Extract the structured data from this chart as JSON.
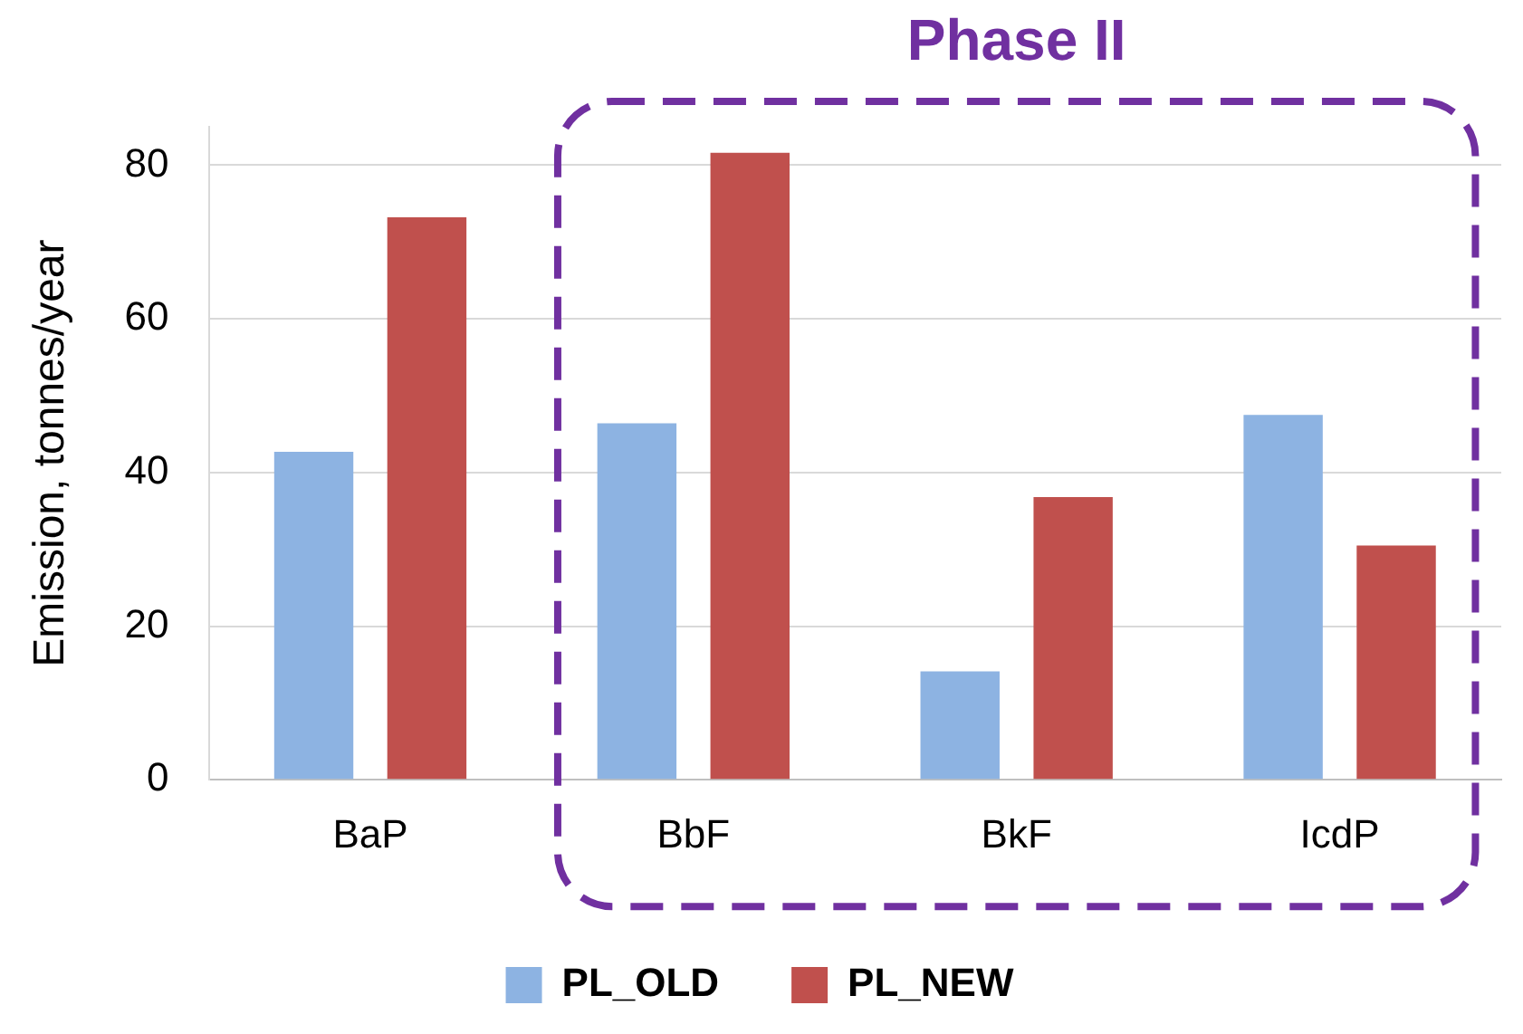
{
  "chart_data": {
    "type": "bar",
    "ylabel": "Emission, tonnes/year",
    "categories": [
      "BaP",
      "BbF",
      "BkF",
      "IcdP"
    ],
    "series": [
      {
        "name": "PL_OLD",
        "color": "#8db3e2",
        "values": [
          42.7,
          46.4,
          14.1,
          47.5
        ]
      },
      {
        "name": "PL_NEW",
        "color": "#c0504d",
        "values": [
          73.2,
          81.6,
          36.8,
          30.5
        ]
      }
    ],
    "ylim": [
      0,
      85
    ],
    "yticks": [
      0,
      20,
      40,
      60,
      80
    ],
    "grid": "y",
    "legend": "bottom",
    "annotations": [
      "Phase II"
    ]
  }
}
